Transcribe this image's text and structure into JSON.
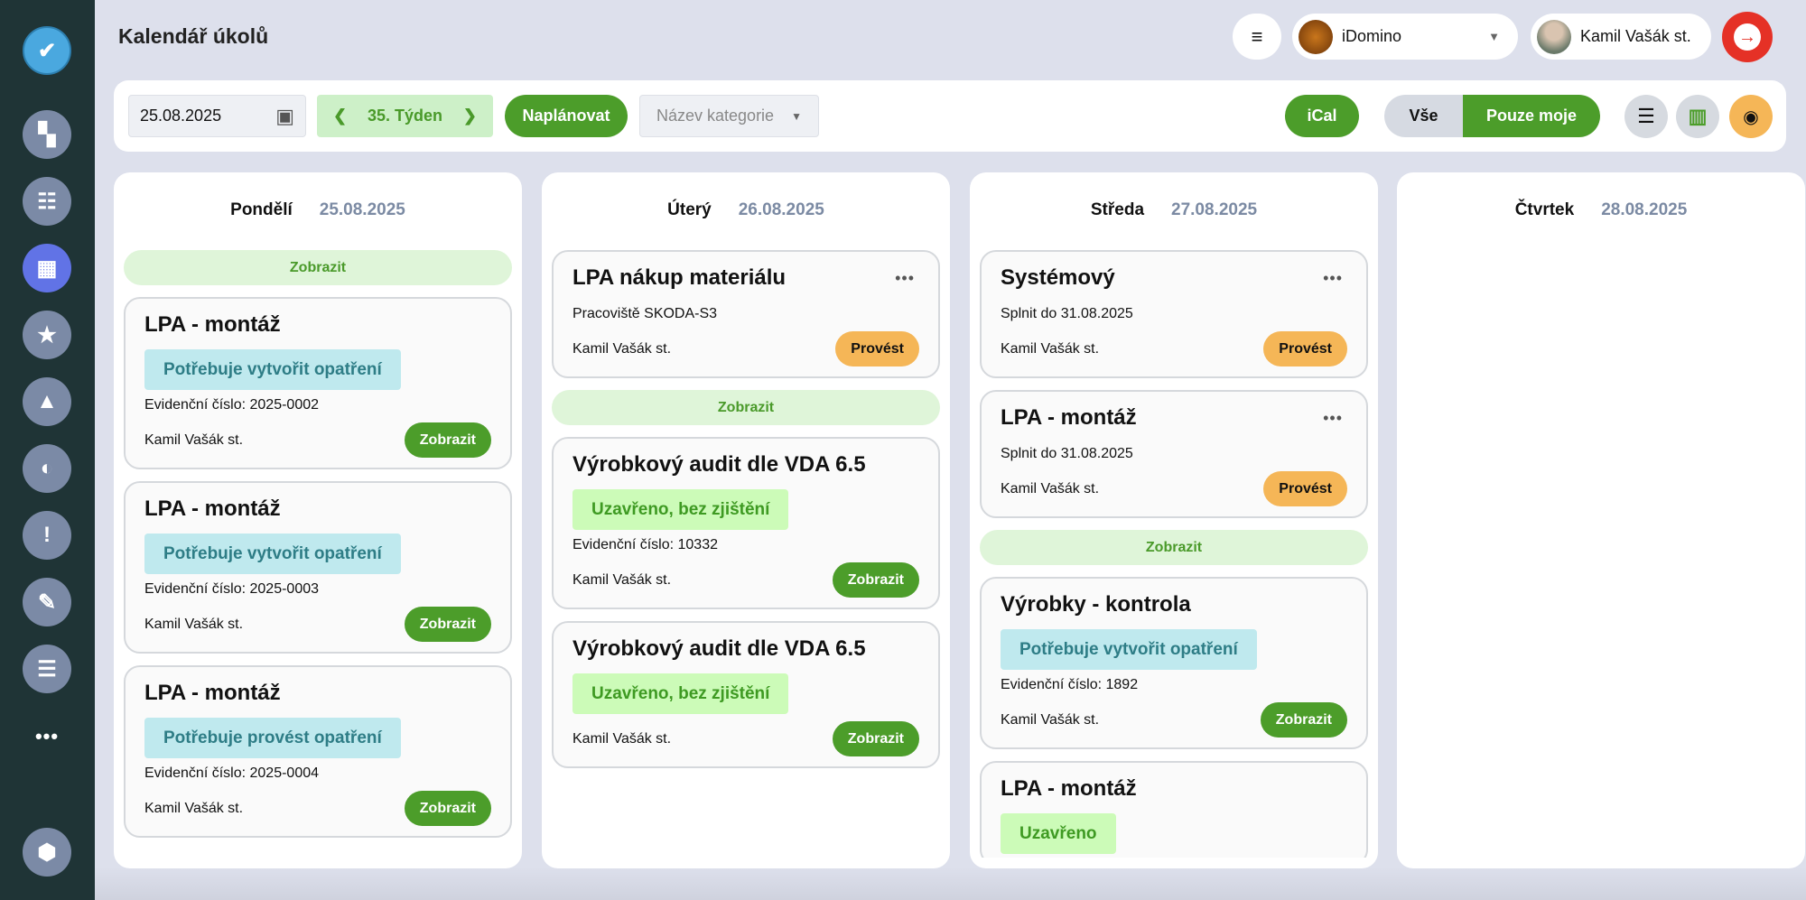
{
  "header": {
    "title": "Kalendář úkolů",
    "company": "iDomino",
    "user": "Kamil Vašák st."
  },
  "sidebar": {
    "items": [
      "check-logo-icon",
      "dashboard-icon",
      "checklist-icon",
      "calendar-icon",
      "star-icon",
      "warning-icon",
      "toggle-icon",
      "report-icon",
      "edit-document-icon",
      "gantt-icon",
      "more-icon",
      "settings-icon"
    ],
    "active": "calendar-icon"
  },
  "toolbar": {
    "date": "25.08.2025",
    "week": "35. Týden",
    "plan": "Naplánovat",
    "category_placeholder": "Název kategorie",
    "ical": "iCal",
    "all": "Vše",
    "mine": "Pouze moje",
    "selected_filter": "Pouze moje"
  },
  "colors": {
    "green": "#4c9d2a",
    "orange": "#f5b657",
    "sidebar": "#1f3436",
    "logout": "#e53126"
  },
  "columns": [
    {
      "day": "Pondělí",
      "date": "25.08.2025",
      "items": [
        {
          "type": "show",
          "label": "Zobrazit"
        },
        {
          "type": "card",
          "title": "LPA - montáž",
          "badge": "Potřebuje vytvořit opatření",
          "badge_color": "blue",
          "line": "Evidenční číslo: 2025-0002",
          "name": "Kamil Vašák st.",
          "button": "Zobrazit",
          "button_color": "green"
        },
        {
          "type": "card",
          "title": "LPA - montáž",
          "badge": "Potřebuje vytvořit opatření",
          "badge_color": "blue",
          "line": "Evidenční číslo: 2025-0003",
          "name": "Kamil Vašák st.",
          "button": "Zobrazit",
          "button_color": "green"
        },
        {
          "type": "card",
          "title": "LPA - montáž",
          "badge": "Potřebuje provést opatření",
          "badge_color": "blue",
          "line": "Evidenční číslo: 2025-0004",
          "name": "Kamil Vašák st.",
          "button": "Zobrazit",
          "button_color": "green"
        }
      ]
    },
    {
      "day": "Úterý",
      "date": "26.08.2025",
      "items": [
        {
          "type": "card",
          "title": "LPA nákup materiálu",
          "menu": true,
          "sub": "Pracoviště SKODA-S3",
          "name": "Kamil Vašák st.",
          "button": "Provést",
          "button_color": "orange"
        },
        {
          "type": "show",
          "label": "Zobrazit"
        },
        {
          "type": "card",
          "title": "Výrobkový audit dle VDA 6.5",
          "badge": "Uzavřeno, bez zjištění",
          "badge_color": "green",
          "line": "Evidenční číslo: 10332",
          "name": "Kamil Vašák st.",
          "button": "Zobrazit",
          "button_color": "green"
        },
        {
          "type": "card",
          "title": "Výrobkový audit dle VDA 6.5",
          "badge": "Uzavřeno, bez zjištění",
          "badge_color": "green",
          "name": "Kamil Vašák st.",
          "button": "Zobrazit",
          "button_color": "green"
        }
      ]
    },
    {
      "day": "Středa",
      "date": "27.08.2025",
      "items": [
        {
          "type": "card",
          "title": "Systémový",
          "menu": true,
          "sub": "Splnit do 31.08.2025",
          "name": "Kamil Vašák st.",
          "button": "Provést",
          "button_color": "orange"
        },
        {
          "type": "card",
          "title": "LPA - montáž",
          "menu": true,
          "sub": "Splnit do 31.08.2025",
          "name": "Kamil Vašák st.",
          "button": "Provést",
          "button_color": "orange"
        },
        {
          "type": "show",
          "label": "Zobrazit"
        },
        {
          "type": "card",
          "title": "Výrobky - kontrola",
          "badge": "Potřebuje vytvořit opatření",
          "badge_color": "blue",
          "line": "Evidenční číslo: 1892",
          "name": "Kamil Vašák st.",
          "button": "Zobrazit",
          "button_color": "green"
        },
        {
          "type": "card",
          "title": "LPA - montáž",
          "badge": "Uzavřeno",
          "badge_color": "green"
        }
      ]
    },
    {
      "day": "Čtvrtek",
      "date": "28.08.2025",
      "items": []
    }
  ]
}
